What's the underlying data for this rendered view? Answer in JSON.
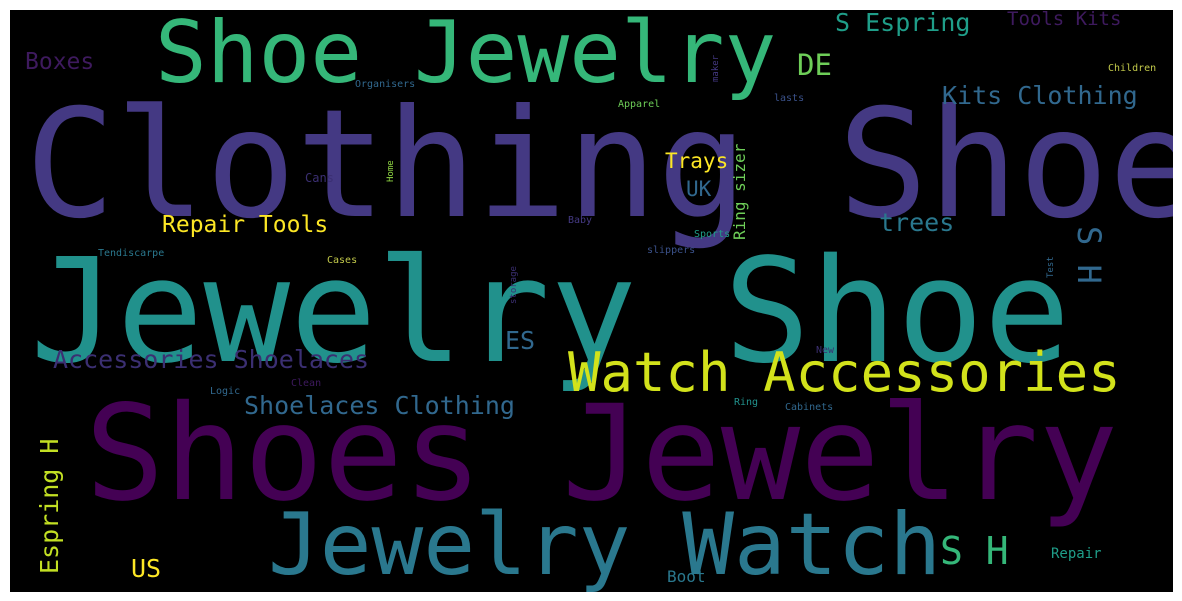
{
  "palette": {
    "background": "#000000",
    "frame": "#ffffff",
    "purple": "#440154",
    "indigo": "#443983",
    "slate": "#31688e",
    "teal": "#21918c",
    "green": "#35b779",
    "lime": "#90d743",
    "yellow": "#fde725",
    "olive": "#c2c94a"
  },
  "words": [
    {
      "text": "Clothing Shoes",
      "color": "#443983"
    },
    {
      "text": "Jewelry Shoe",
      "color": "#21918c"
    },
    {
      "text": "Shoes Jewelry",
      "color": "#440154"
    },
    {
      "text": "Shoe Jewelry",
      "color": "#35b779"
    },
    {
      "text": "Jewelry Watch",
      "color": "#2a788e"
    },
    {
      "text": "Watch Accessories",
      "color": "#d2e21b"
    },
    {
      "text": "Accessories Shoelaces",
      "color": "#3b2f72"
    },
    {
      "text": "Shoelaces Clothing",
      "color": "#31688e"
    },
    {
      "text": "Kits Clothing",
      "color": "#31688e"
    },
    {
      "text": "S Espring",
      "color": "#1f9e89"
    },
    {
      "text": "Tools Kits",
      "color": "#3e1a5e"
    },
    {
      "text": "Boxes",
      "color": "#3e1a5e"
    },
    {
      "text": "DE",
      "color": "#6ece58"
    },
    {
      "text": "Repair Tools",
      "color": "#fde725"
    },
    {
      "text": "Trays",
      "color": "#fde725"
    },
    {
      "text": "UK",
      "color": "#31688e"
    },
    {
      "text": "trees",
      "color": "#2a788e"
    },
    {
      "text": "Ring sizer",
      "color": "#6ece58"
    },
    {
      "text": "S H",
      "color": "#31688e"
    },
    {
      "text": "ES",
      "color": "#31688e"
    },
    {
      "text": "Espring H",
      "color": "#c2df23"
    },
    {
      "text": "S H",
      "color": "#35b779"
    },
    {
      "text": "US",
      "color": "#fde725"
    },
    {
      "text": "Boot",
      "color": "#2a788e"
    },
    {
      "text": "Repair",
      "color": "#1f9e89"
    },
    {
      "text": "Organisers",
      "color": "#31688e"
    },
    {
      "text": "Apparel",
      "color": "#6ece58"
    },
    {
      "text": "maker",
      "color": "#443983"
    },
    {
      "text": "lasts",
      "color": "#3b528b"
    },
    {
      "text": "Children",
      "color": "#c2c94a"
    },
    {
      "text": "Home",
      "color": "#90d743"
    },
    {
      "text": "Cans",
      "color": "#3b2f72"
    },
    {
      "text": "Baby",
      "color": "#443983"
    },
    {
      "text": "Sports",
      "color": "#1f9e89"
    },
    {
      "text": "slippers",
      "color": "#3b528b"
    },
    {
      "text": "Tendiscarpe",
      "color": "#2a788e"
    },
    {
      "text": "Cases",
      "color": "#c2c94a"
    },
    {
      "text": "storage",
      "color": "#3b2f72"
    },
    {
      "text": "Test",
      "color": "#31688e"
    },
    {
      "text": "New",
      "color": "#3b2f72"
    },
    {
      "text": "Logic",
      "color": "#31688e"
    },
    {
      "text": "Clean",
      "color": "#3e1a5e"
    },
    {
      "text": "Ring",
      "color": "#21918c"
    },
    {
      "text": "Cabinets",
      "color": "#31688e"
    }
  ]
}
